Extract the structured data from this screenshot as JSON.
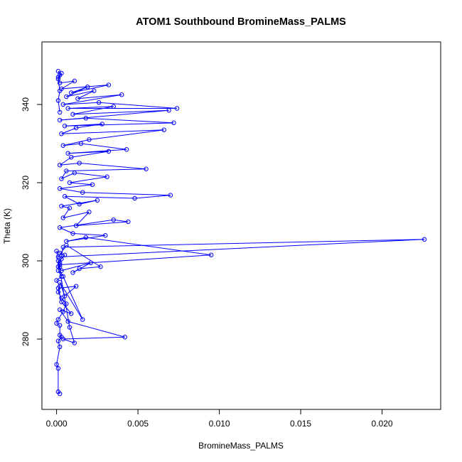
{
  "chart_data": {
    "type": "line",
    "title": "ATOM1 Southbound BromineMass_PALMS",
    "xlabel": "BromineMass_PALMS",
    "ylabel": "Theta (K)",
    "xlim": [
      -0.0009,
      0.0236
    ],
    "ylim": [
      262,
      356
    ],
    "x_ticks": [
      0.0,
      0.005,
      0.01,
      0.015,
      0.02
    ],
    "x_tick_labels": [
      "0.000",
      "0.005",
      "0.010",
      "0.015",
      "0.020"
    ],
    "y_ticks": [
      280,
      300,
      320,
      340
    ],
    "y_tick_labels": [
      "280",
      "300",
      "320",
      "340"
    ],
    "grid": false,
    "legend": "none",
    "series_color": "#0000ff",
    "marker": "open-circle",
    "series": [
      {
        "x": [
          0.0002,
          0.0001,
          0.0001,
          0.0,
          0.0002,
          0.0001,
          0.0003,
          0.0002,
          0.0002,
          0.0,
          0.0001,
          0.0004,
          0.0006,
          0.0003,
          0.0001,
          0.0002,
          0.0,
          0.0003,
          0.0001,
          0.0002,
          0.0002,
          0.0001,
          0.0003,
          0.0005,
          0.0002,
          0.0,
          0.0008,
          0.0011,
          0.0004,
          0.0042,
          0.0007,
          0.0002,
          0.0009,
          0.0003,
          0.0001,
          0.0012,
          0.0005,
          0.0002,
          0.0016,
          0.0004,
          0.0001,
          0.0003,
          0.0021,
          0.001,
          0.0014,
          0.0027,
          0.0006,
          0.0001,
          0.0226,
          0.0004,
          0.0002,
          0.0095,
          0.0018,
          0.0006,
          0.003,
          0.001,
          0.0002,
          0.0035,
          0.0044,
          0.0012,
          0.002,
          0.0004,
          0.0008,
          0.0003,
          0.0025,
          0.0014,
          0.0005,
          0.0048,
          0.007,
          0.0016,
          0.0002,
          0.0022,
          0.0008,
          0.0031,
          0.0011,
          0.0003,
          0.0006,
          0.0055,
          0.0014,
          0.0002,
          0.0009,
          0.0032,
          0.0007,
          0.0043,
          0.0015,
          0.0004,
          0.002,
          0.0066,
          0.0003,
          0.0012,
          0.0028,
          0.0005,
          0.0072,
          0.0018,
          0.0002,
          0.0069,
          0.001,
          0.0035,
          0.0007,
          0.0074,
          0.0026,
          0.0004,
          0.004,
          0.0013,
          0.0023,
          0.0006,
          0.0019,
          0.0009,
          0.0032,
          0.0003,
          0.0011,
          0.0002,
          0.0001,
          0.0002,
          0.0001,
          0.0003,
          0.0001,
          0.0002,
          0.0001,
          0.0002
        ],
        "y": [
          266.0,
          266.5,
          272.5,
          273.5,
          278.0,
          279.5,
          280.5,
          281.0,
          283.5,
          284.0,
          285.0,
          287.0,
          289.0,
          290.5,
          292.0,
          293.5,
          295.0,
          296.0,
          297.5,
          298.5,
          299.5,
          300.0,
          300.5,
          301.5,
          302.0,
          302.5,
          283.0,
          279.0,
          280.0,
          280.5,
          284.5,
          287.5,
          286.5,
          289.5,
          293.0,
          293.5,
          291.0,
          294.5,
          285.0,
          296.0,
          298.5,
          297.5,
          299.5,
          297.0,
          298.0,
          298.5,
          304.0,
          301.0,
          305.5,
          303.5,
          299.0,
          301.5,
          306.0,
          305.0,
          306.5,
          307.0,
          308.5,
          310.5,
          310.0,
          309.0,
          312.5,
          311.0,
          313.5,
          314.0,
          315.5,
          314.5,
          316.5,
          316.0,
          316.8,
          317.5,
          318.5,
          319.5,
          320.0,
          321.5,
          322.5,
          321.0,
          323.0,
          323.5,
          325.0,
          324.5,
          326.5,
          328.0,
          327.5,
          328.5,
          330.0,
          329.5,
          331.0,
          333.5,
          332.5,
          334.0,
          335.0,
          334.5,
          335.3,
          336.5,
          336.0,
          338.5,
          337.5,
          339.5,
          339.0,
          339.0,
          340.5,
          340.0,
          342.5,
          341.5,
          343.5,
          342.0,
          344.5,
          343.0,
          345.0,
          344.0,
          346.0,
          345.5,
          347.0,
          347.5,
          348.5,
          348.0,
          346.5,
          343.5,
          341.0,
          338.0
        ]
      }
    ]
  }
}
